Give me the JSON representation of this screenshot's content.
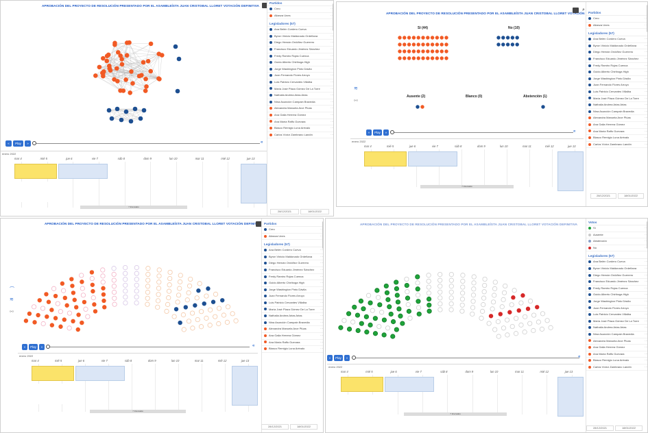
{
  "chart_title": "APROBACIÓN DEL PROYECTO DE RESOLUCIÓN PRESENTADO POR EL ASAMBLEÍSTA JUAN CRISTOBAL LLORET VOTACIÓN DEFINITIVA",
  "colors": {
    "orange": "#f15a24",
    "navy": "#1d4f91",
    "green": "#1fa33a",
    "red": "#d62828",
    "grey": "#b5b5b5",
    "pink": "#f3b2c6",
    "peach": "#f4c9a8",
    "accent": "#2f6fd1"
  },
  "sidebar": {
    "partidos_header": "Partidos",
    "partidos": [
      {
        "name": "Creo",
        "color": "#1d4f91"
      },
      {
        "name": "Alianza Unes",
        "color": "#f15a24"
      }
    ],
    "votos_header": "Votos",
    "votos": [
      {
        "name": "Sí",
        "color": "#1fa33a"
      },
      {
        "name": "Ausente",
        "color": "#c9c9c9"
      },
      {
        "name": "Abstención",
        "color": "#8aa0c8"
      },
      {
        "name": "No",
        "color": "#d62828"
      }
    ],
    "legisladores_header": "Legisladores (57)",
    "legisladores": [
      {
        "name": "Ana Belén Cordero Cueva",
        "color": "#1d4f91"
      },
      {
        "name": "Byron Vinicio Maldonado Ordeñana",
        "color": "#1d4f91"
      },
      {
        "name": "Diego Hernán Ordóñez Guerrero",
        "color": "#1d4f91"
      },
      {
        "name": "Francisco Eduardo Jiménez Sánchez",
        "color": "#1d4f91"
      },
      {
        "name": "Fredy Ramiro Rojas Cuenca",
        "color": "#1d4f91"
      },
      {
        "name": "Guido Alberto Chiriboga High",
        "color": "#1d4f91"
      },
      {
        "name": "Jorge Washington Pinto Dávila",
        "color": "#1d4f91"
      },
      {
        "name": "Juan Fernando Flores Arroyo",
        "color": "#1d4f91"
      },
      {
        "name": "Luis Patricio Cervantes Villalba",
        "color": "#1d4f91"
      },
      {
        "name": "María José Plaza Gómez De La Torre",
        "color": "#1d4f91"
      },
      {
        "name": "Nathalia Andrea Arias Arias",
        "color": "#1d4f91"
      },
      {
        "name": "Nina Asunción Campain Bravedia",
        "color": "#1d4f91"
      },
      {
        "name": "Alexandra Manuela Arce Plúas",
        "color": "#f15a24"
      },
      {
        "name": "Ana Galia Herrera Gómez",
        "color": "#f15a24"
      },
      {
        "name": "Ana María Raffo Guevara",
        "color": "#f15a24"
      },
      {
        "name": "Blasco Remigio Luna Arévalo",
        "color": "#f15a24"
      },
      {
        "name": "Carlos Víctor Zambrano Landín",
        "color": "#f15a24"
      }
    ]
  },
  "votes_view": {
    "si_label": "Sí (44)",
    "no_label": "No (10)",
    "ausente_label": "Ausente (2)",
    "blanco_label": "Blanco (0)",
    "abstencion_label": "Abstención (1)",
    "si": 44,
    "no": 10,
    "ausente": 2,
    "blanco": 0,
    "abstencion": 1
  },
  "network": {
    "orange_nodes": 44,
    "navy_nodes": 10
  },
  "controls": {
    "play_label": "Play",
    "prev_label": "«",
    "next_label": "»"
  },
  "timeline": {
    "year_label": "enero 2022",
    "days": [
      "mar 4",
      "mié 5",
      "jue 6",
      "vie 7",
      "sáb 8",
      "dom 9",
      "lun 10",
      "mar 11",
      "mié 12",
      "jue 13"
    ],
    "event_selected": "Aprobación del proyecto de resolución presentado por el asambleísta juan cristóbal lloret votación definitiva",
    "event_second": "Aprobación del proyecto de la ley orgánica de vivienda de interés social votación definitiva",
    "event_left": "artículos 29, 30, 33, 44, 45, 96, 97, 98, 99 y 100 ) del texto del informe para primer debate de la ley orgánica reformatoria",
    "event_right": "Moción presentada por el asambleísta ... apoyar a la emisión de ... segundo y cuarto de la constitución del ecuador votación definitiva ... de la ley orgánica de ... de la ley orgánica",
    "nav_label": "7 Intervalos",
    "range_start": "28/12/2021",
    "range_end": "18/01/2022"
  }
}
